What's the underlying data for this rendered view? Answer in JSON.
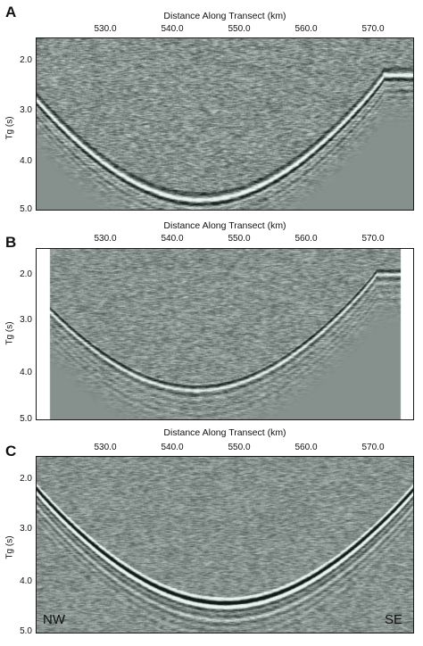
{
  "panels": [
    {
      "letter": "A",
      "x_axis_label": "Distance Along Transect (km)",
      "x_ticks": [
        "530.0",
        "540.0",
        "550.0",
        "560.0",
        "570.0"
      ],
      "y_axis_label": "Tg (s)",
      "y_ticks": [
        "2.0",
        "3.0",
        "4.0",
        "5.0"
      ],
      "corner_labels": []
    },
    {
      "letter": "B",
      "x_axis_label": "Distance Along Transect (km)",
      "x_ticks": [
        "530.0",
        "540.0",
        "550.0",
        "560.0",
        "570.0"
      ],
      "y_axis_label": "Tg (s)",
      "y_ticks": [
        "2.0",
        "3.0",
        "4.0",
        "5.0"
      ],
      "corner_labels": []
    },
    {
      "letter": "C",
      "x_axis_label": "Distance Along Transect (km)",
      "x_ticks": [
        "530.0",
        "540.0",
        "550.0",
        "560.0",
        "570.0"
      ],
      "y_axis_label": "Tg (s)",
      "y_ticks": [
        "2.0",
        "3.0",
        "4.0",
        "5.0"
      ],
      "corner_labels": [
        "NW",
        "SE"
      ]
    }
  ],
  "colors": {
    "seismic_base": "#8a9893",
    "frame": "#1a1a1a"
  }
}
